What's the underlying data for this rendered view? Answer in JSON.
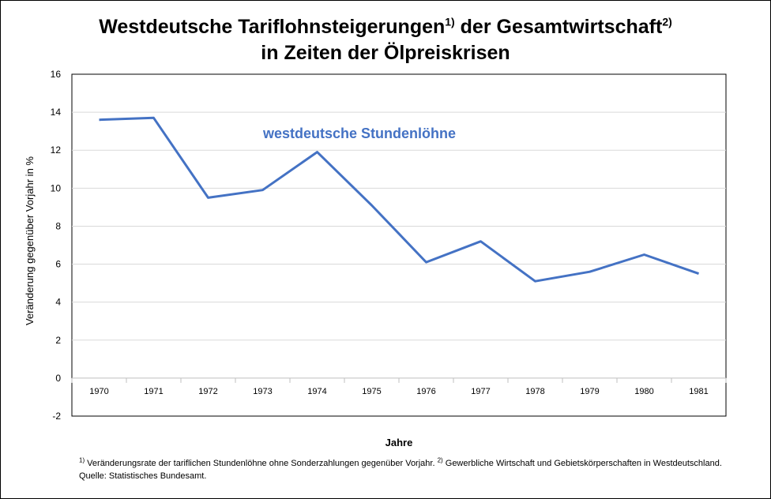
{
  "title": {
    "part1": "Westdeutsche Tariflohnsteigerungen",
    "sup1": "1)",
    "part2": " der Gesamtwirtschaft",
    "sup2": "2)",
    "line2": "in Zeiten der Ölpreiskrisen"
  },
  "footnote": {
    "sup1": "1)",
    "text1": " Veränderungsrate der tariflichen Stundenlöhne ohne Sonderzahlungen gegenüber Vorjahr. ",
    "sup2": "2)",
    "text2": "  Gewerbliche Wirtschaft und Gebietskörperschaften in Westdeutschland.",
    "source": "Quelle: Statistisches Bundesamt."
  },
  "chart_data": {
    "type": "line",
    "title": "Westdeutsche Tariflohnsteigerungen der Gesamtwirtschaft in Zeiten der Ölpreiskrisen",
    "xlabel": "Jahre",
    "ylabel": "Veränderung gegenüber Vorjahr in %",
    "ylim": [
      -2,
      16
    ],
    "yticks": [
      -2,
      0,
      2,
      4,
      6,
      8,
      10,
      12,
      14,
      16
    ],
    "categories": [
      "1970",
      "1971",
      "1972",
      "1973",
      "1974",
      "1975",
      "1976",
      "1977",
      "1978",
      "1979",
      "1980",
      "1981"
    ],
    "grid": true,
    "series": [
      {
        "name": "westdeutsche Stundenlöhne",
        "color": "#4472C4",
        "values": [
          13.6,
          13.7,
          9.5,
          9.9,
          11.9,
          9.1,
          6.1,
          7.2,
          5.1,
          5.6,
          6.5,
          5.5
        ]
      }
    ]
  }
}
